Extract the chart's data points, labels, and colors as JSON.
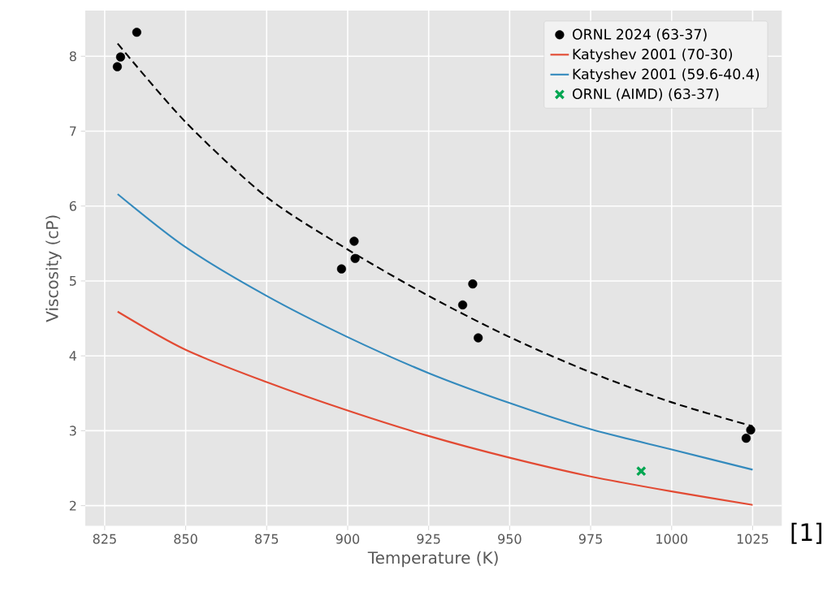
{
  "chart_data": {
    "type": "scatter",
    "xlabel": "Temperature (K)",
    "ylabel": "Viscosity (cP)",
    "xlim": [
      819,
      1034
    ],
    "ylim": [
      1.73,
      8.61
    ],
    "xticks": [
      825,
      850,
      875,
      900,
      925,
      950,
      975,
      1000,
      1025
    ],
    "yticks": [
      2,
      3,
      4,
      5,
      6,
      7,
      8
    ],
    "grid": true,
    "legend": "top right",
    "annotations": [
      "[1]"
    ],
    "series": [
      {
        "name": "ORNL 2024 (63-37)",
        "marker": "circle",
        "color": "#000000",
        "x": [
          828.9,
          829.9,
          834.9,
          898.1,
          902.0,
          902.3,
          935.5,
          938.6,
          940.3,
          1023.0,
          1024.4
        ],
        "values": [
          7.86,
          7.99,
          8.32,
          5.16,
          5.53,
          5.3,
          4.68,
          4.96,
          4.24,
          2.9,
          3.01
        ]
      },
      {
        "name": "Katyshev 2001 (70-30)",
        "type": "line",
        "color": "#e24a33",
        "x": [
          829,
          850,
          875,
          900,
          925,
          950,
          975,
          1000,
          1025
        ],
        "values": [
          4.59,
          4.08,
          3.65,
          3.27,
          2.93,
          2.64,
          2.39,
          2.19,
          2.01
        ]
      },
      {
        "name": "Katyshev 2001 (59.6-40.4)",
        "type": "line",
        "color": "#348abd",
        "x": [
          829,
          850,
          875,
          900,
          925,
          950,
          975,
          1000,
          1025
        ],
        "values": [
          6.16,
          5.45,
          4.8,
          4.25,
          3.77,
          3.37,
          3.02,
          2.75,
          2.48
        ]
      },
      {
        "type": "line",
        "line_style": "dashed",
        "color": "#000000",
        "x": [
          829,
          850,
          875,
          900,
          925,
          950,
          975,
          1000,
          1025
        ],
        "values": [
          8.17,
          7.12,
          6.12,
          5.42,
          4.8,
          4.25,
          3.78,
          3.38,
          3.06
        ]
      },
      {
        "name": "ORNL (AIMD) (63-37)",
        "marker": "cross",
        "color": "#00a651",
        "x": [
          990.6
        ],
        "values": [
          2.46
        ]
      }
    ]
  }
}
